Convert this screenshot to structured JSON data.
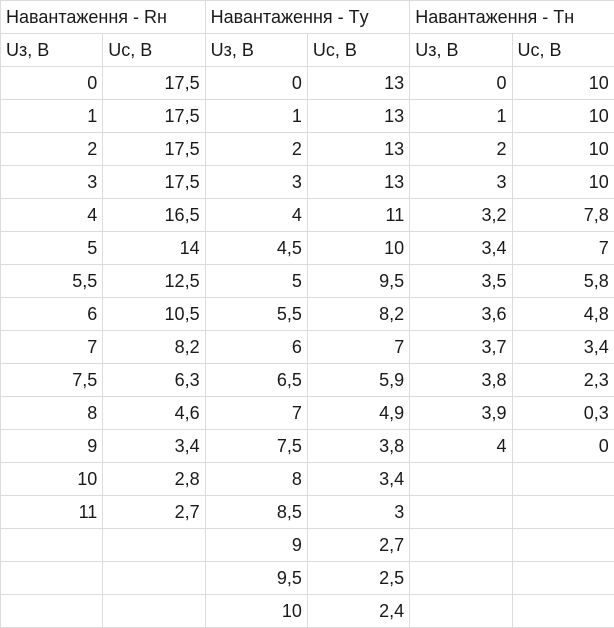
{
  "headers": [
    "Навантаження - Rн",
    "Навантаження - Тy",
    "Навантаження - Тн"
  ],
  "subheaders": [
    "Uз, В",
    "Uс, В",
    "Uз, В",
    "Uс, В",
    "Uз, В",
    "Uс, В"
  ],
  "rows": [
    [
      "0",
      "17,5",
      "0",
      "13",
      "0",
      "10"
    ],
    [
      "1",
      "17,5",
      "1",
      "13",
      "1",
      "10"
    ],
    [
      "2",
      "17,5",
      "2",
      "13",
      "2",
      "10"
    ],
    [
      "3",
      "17,5",
      "3",
      "13",
      "3",
      "10"
    ],
    [
      "4",
      "16,5",
      "4",
      "11",
      "3,2",
      "7,8"
    ],
    [
      "5",
      "14",
      "4,5",
      "10",
      "3,4",
      "7"
    ],
    [
      "5,5",
      "12,5",
      "5",
      "9,5",
      "3,5",
      "5,8"
    ],
    [
      "6",
      "10,5",
      "5,5",
      "8,2",
      "3,6",
      "4,8"
    ],
    [
      "7",
      "8,2",
      "6",
      "7",
      "3,7",
      "3,4"
    ],
    [
      "7,5",
      "6,3",
      "6,5",
      "5,9",
      "3,8",
      "2,3"
    ],
    [
      "8",
      "4,6",
      "7",
      "4,9",
      "3,9",
      "0,3"
    ],
    [
      "9",
      "3,4",
      "7,5",
      "3,8",
      "4",
      "0"
    ],
    [
      "10",
      "2,8",
      "8",
      "3,4",
      "",
      ""
    ],
    [
      "11",
      "2,7",
      "8,5",
      "3",
      "",
      ""
    ],
    [
      "",
      "",
      "9",
      "2,7",
      "",
      ""
    ],
    [
      "",
      "",
      "9,5",
      "2,5",
      "",
      ""
    ],
    [
      "",
      "",
      "10",
      "2,4",
      "",
      ""
    ]
  ]
}
